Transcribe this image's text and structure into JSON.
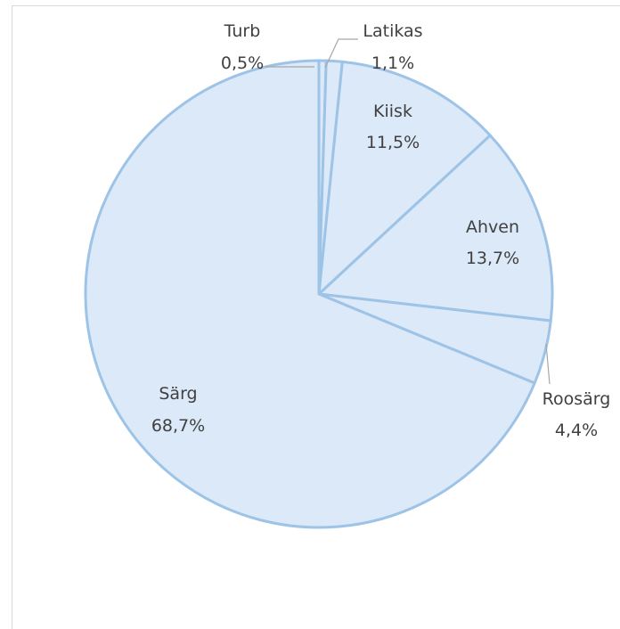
{
  "chart_data": {
    "type": "pie",
    "title": "",
    "colors": {
      "slice_fill": "#dce9f8",
      "slice_stroke": "#9dc3e6",
      "leader_line": "#a6a6a6",
      "text": "#404040",
      "border": "#d9d9d9"
    },
    "slices": [
      {
        "name": "Turb",
        "value": 0.5,
        "value_label": "0,5%"
      },
      {
        "name": "Latikas",
        "value": 1.1,
        "value_label": "1,1%"
      },
      {
        "name": "Kiisk",
        "value": 11.5,
        "value_label": "11,5%"
      },
      {
        "name": "Ahven",
        "value": 13.7,
        "value_label": "13,7%"
      },
      {
        "name": "Roosärg",
        "value": 4.4,
        "value_label": "4,4%"
      },
      {
        "name": "Särg",
        "value": 68.7,
        "value_label": "68,7%"
      }
    ]
  }
}
